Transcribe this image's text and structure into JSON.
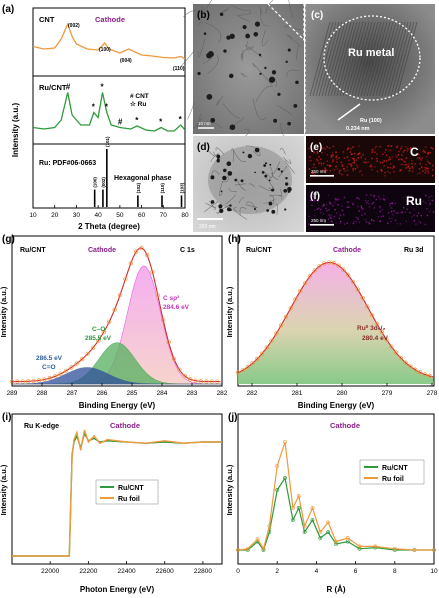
{
  "panels": {
    "a": {
      "label": "(a)",
      "ylabel": "Intensity (a.u.)",
      "xlabel": "2 Theta (degree)",
      "xticks": [
        "10",
        "20",
        "30",
        "40",
        "50",
        "60",
        "70",
        "80"
      ],
      "cnt": {
        "sample": "CNT",
        "side": "Cathode",
        "peaks": [
          "(002)",
          "(100)",
          "(004)",
          "(110)"
        ]
      },
      "rucnt": {
        "sample": "Ru/CNT",
        "legend_hash": "# CNT",
        "legend_star": "☆ Ru",
        "hash": "#",
        "star": "*"
      },
      "ref": {
        "card": "Ru: PDF#06-0663",
        "phase": "Hexagonal phase",
        "peaks": [
          "(100)",
          "(002)",
          "(101)",
          "(102)",
          "(110)",
          "(103)"
        ]
      }
    },
    "b": {
      "label": "(b)",
      "scale": "10 nm"
    },
    "c": {
      "label": "(c)",
      "metal": "Ru metal",
      "plane": "Ru (100)",
      "spacing": "0.234 nm"
    },
    "d": {
      "label": "(d)",
      "scale": "250 nm"
    },
    "e": {
      "label": "(e)",
      "element": "C",
      "scale": "250 nm"
    },
    "f": {
      "label": "(f)",
      "element": "Ru",
      "scale": "250 nm"
    },
    "g": {
      "label": "(g)",
      "sample": "Ru/CNT",
      "side": "Cathode",
      "core": "C 1s",
      "ylabel": "Intensity (a.u.)",
      "xlabel": "Binding Energy (eV)",
      "xticks": [
        "289",
        "288",
        "287",
        "286",
        "285",
        "284",
        "283",
        "282"
      ],
      "peaks": {
        "csp2": "C sp²",
        "csp2_e": "284.6 eV",
        "co": "C–O",
        "co_e": "285.5 eV",
        "c_o": "286.5 eV",
        "c_o_name": "C=O"
      }
    },
    "h": {
      "label": "(h)",
      "sample": "Ru/CNT",
      "side": "Cathode",
      "core": "Ru 3d",
      "ylabel": "Intensity (a.u.)",
      "xlabel": "Binding Energy (eV)",
      "xticks": [
        "282",
        "281",
        "280",
        "279",
        "278"
      ],
      "peak": "Ru⁰ 3d₅/₂",
      "peak_e": "280.4 eV"
    },
    "i": {
      "label": "(i)",
      "edge": "Ru K-edge",
      "side": "Cathode",
      "ylabel": "Intensity (a.u.)",
      "xlabel": "Photon Energy (eV)",
      "xticks": [
        "22000",
        "22200",
        "22400",
        "22600",
        "22800"
      ],
      "legend": [
        "Ru/CNT",
        "Ru foil"
      ]
    },
    "j": {
      "label": "(j)",
      "side": "Cathode",
      "ylabel": "Intensity (a.u.)",
      "xlabel": "R (Å)",
      "xticks": [
        "0",
        "2",
        "4",
        "6",
        "8",
        "10"
      ],
      "legend": [
        "Ru/CNT",
        "Ru foil"
      ]
    }
  },
  "colors": {
    "orange": "#ee9a3c",
    "green": "#2e9a3c",
    "purple": "#8a1f8a",
    "red": "#d22b2b",
    "pink": "#e64fe0",
    "magenta_text": "#c233c0"
  },
  "chart_data": [
    {
      "panel": "a",
      "type": "line",
      "title": "",
      "xlabel": "2 Theta (degree)",
      "ylabel": "Intensity (a.u.)",
      "xlim": [
        10,
        80
      ],
      "series": [
        {
          "name": "CNT",
          "x": [
            10,
            15,
            20,
            23,
            26,
            28,
            30,
            35,
            40,
            43,
            45,
            50,
            54,
            60,
            65,
            70,
            75,
            78,
            80
          ],
          "y": [
            0.55,
            0.5,
            0.52,
            0.7,
            1.0,
            0.75,
            0.6,
            0.5,
            0.48,
            0.62,
            0.5,
            0.42,
            0.5,
            0.38,
            0.36,
            0.33,
            0.32,
            0.35,
            0.3
          ]
        },
        {
          "name": "Ru/CNT",
          "x": [
            10,
            15,
            20,
            23,
            26,
            28,
            32,
            36,
            38,
            40,
            42,
            44,
            46,
            50,
            55,
            58,
            62,
            66,
            69,
            72,
            75,
            78,
            80
          ],
          "y": [
            0.25,
            0.22,
            0.25,
            0.4,
            0.95,
            0.5,
            0.3,
            0.3,
            0.55,
            0.45,
            0.95,
            0.55,
            0.3,
            0.25,
            0.22,
            0.28,
            0.2,
            0.18,
            0.25,
            0.18,
            0.18,
            0.3,
            0.2
          ]
        }
      ]
    },
    {
      "panel": "a-ref",
      "type": "bar",
      "title": "",
      "x": [
        38.4,
        42.2,
        44.0,
        58.3,
        69.4,
        78.4
      ],
      "values": [
        0.3,
        0.3,
        1.0,
        0.2,
        0.2,
        0.2
      ]
    },
    {
      "panel": "g",
      "type": "line",
      "title": "",
      "xlabel": "Binding Energy (eV)",
      "ylabel": "Intensity (a.u.)",
      "xlim": [
        289,
        282
      ],
      "series": [
        {
          "name": "C sp2",
          "center": 284.6,
          "height": 1.0,
          "width": 0.55
        },
        {
          "name": "C–O",
          "center": 285.5,
          "height": 0.35,
          "width": 0.6
        },
        {
          "name": "C=O",
          "center": 286.5,
          "height": 0.14,
          "width": 0.7
        }
      ]
    },
    {
      "panel": "h",
      "type": "line",
      "title": "",
      "xlabel": "Binding Energy (eV)",
      "ylabel": "Intensity (a.u.)",
      "xlim": [
        282.5,
        278
      ],
      "series": [
        {
          "name": "Ru3d5/2",
          "center": 280.4,
          "height": 1.0,
          "width": 0.9
        }
      ]
    },
    {
      "panel": "i",
      "type": "line",
      "title": "",
      "xlabel": "Photon Energy (eV)",
      "ylabel": "Intensity (a.u.)",
      "xlim": [
        21800,
        22900
      ],
      "series": [
        {
          "name": "Ru/CNT",
          "x": [
            21800,
            22100,
            22115,
            22125,
            22140,
            22160,
            22180,
            22200,
            22230,
            22260,
            22300,
            22400,
            22500,
            22600,
            22700,
            22800,
            22900
          ],
          "y": [
            0.0,
            0.0,
            0.85,
            0.95,
            1.0,
            0.9,
            1.02,
            0.96,
            0.98,
            0.95,
            0.96,
            0.95,
            0.94,
            0.95,
            0.94,
            0.95,
            0.95
          ]
        },
        {
          "name": "Ru foil",
          "x": [
            21800,
            22100,
            22115,
            22125,
            22140,
            22160,
            22180,
            22200,
            22230,
            22260,
            22300,
            22400,
            22500,
            22600,
            22700,
            22800,
            22900
          ],
          "y": [
            0.0,
            0.0,
            0.83,
            0.97,
            1.03,
            0.88,
            1.05,
            0.95,
            1.0,
            0.94,
            0.97,
            0.95,
            0.94,
            0.96,
            0.94,
            0.95,
            0.95
          ]
        }
      ]
    },
    {
      "panel": "j",
      "type": "line",
      "title": "",
      "xlabel": "R (Å)",
      "ylabel": "Intensity (a.u.)",
      "xlim": [
        0,
        10
      ],
      "series": [
        {
          "name": "Ru/CNT",
          "x": [
            0,
            0.5,
            1.0,
            1.3,
            1.6,
            2.0,
            2.4,
            2.8,
            3.1,
            3.4,
            3.8,
            4.2,
            4.6,
            5.0,
            5.6,
            6.2,
            7,
            8,
            9,
            10
          ],
          "y": [
            0.05,
            0.05,
            0.12,
            0.05,
            0.2,
            0.55,
            0.65,
            0.3,
            0.4,
            0.2,
            0.3,
            0.15,
            0.2,
            0.1,
            0.12,
            0.06,
            0.07,
            0.05,
            0.05,
            0.05
          ]
        },
        {
          "name": "Ru foil",
          "x": [
            0,
            0.5,
            1.0,
            1.3,
            1.6,
            2.0,
            2.4,
            2.8,
            3.1,
            3.4,
            3.8,
            4.2,
            4.6,
            5.0,
            5.6,
            6.2,
            7,
            8,
            9,
            10
          ],
          "y": [
            0.05,
            0.06,
            0.14,
            0.06,
            0.25,
            0.75,
            0.95,
            0.4,
            0.5,
            0.25,
            0.4,
            0.2,
            0.28,
            0.12,
            0.15,
            0.08,
            0.08,
            0.06,
            0.05,
            0.05
          ]
        }
      ]
    }
  ]
}
